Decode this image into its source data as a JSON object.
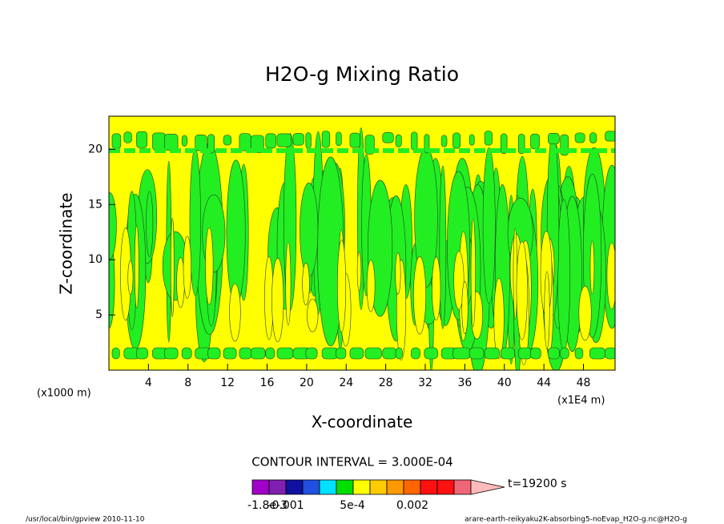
{
  "chart_data": {
    "type": "contour",
    "title": "H2O-g Mixing Ratio",
    "xlabel": "X-coordinate",
    "ylabel": "Z-coordinate",
    "xunit": "(x1000 m)",
    "xunit2": "(x1E4 m)",
    "xlim": [
      0,
      51.2
    ],
    "ylim": [
      0,
      23
    ],
    "xticks": [
      4,
      8,
      12,
      16,
      20,
      24,
      28,
      32,
      36,
      40,
      44,
      48
    ],
    "yticks": [
      5,
      10,
      15,
      20
    ],
    "contour_interval": "CONTOUR INTERVAL = 3.000E-04",
    "time": "t=19200 s",
    "colorbar": {
      "colors": [
        "#a000c8",
        "#8020b0",
        "#1010a0",
        "#2050e0",
        "#00e0ff",
        "#00dd00",
        "#ffff00",
        "#ffcc00",
        "#ff9900",
        "#ff6600",
        "#ff1111",
        "#ff1111",
        "#ee6677",
        "#ffbbbb"
      ],
      "labels": [
        "-1.8e-3",
        "-0.001",
        "5e-4",
        "0.002"
      ]
    },
    "footer_left": "/usr/local/bin/gpview  2010-11-10",
    "footer_right": "arare-earth-reikyaku2K-absorbing5-noEvap_H2O-g.nc@H2O-g"
  }
}
